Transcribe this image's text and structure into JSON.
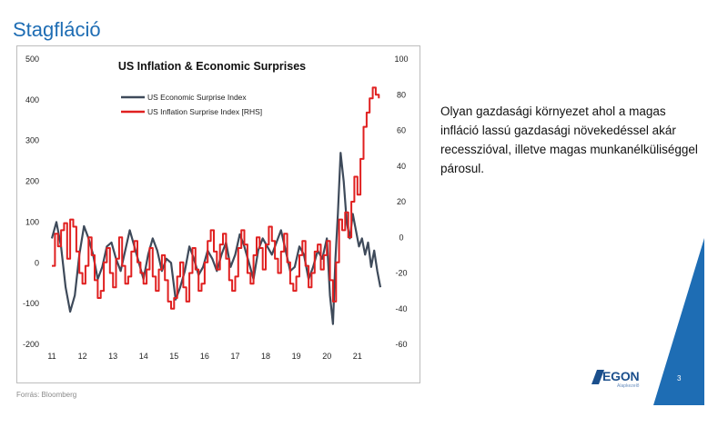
{
  "slide": {
    "title": "Stagfláció",
    "description": "Olyan gazdasági környezet ahol a magas infláció lassú gazdasági növekedéssel akár recesszióval, illetve magas munkanélküliséggel párosul.",
    "source": "Forrás: Bloomberg",
    "page_number": "3",
    "logo_text": "EGON",
    "logo_subtext": "Alapkezelő",
    "accent_color": "#1e6db4",
    "logo": {
      "icon": "egon-logo-icon"
    }
  },
  "chart_data": {
    "type": "line",
    "title": "US Inflation & Economic Surprises",
    "x_tick_labels": [
      "11",
      "12",
      "13",
      "14",
      "15",
      "16",
      "17",
      "18",
      "19",
      "20",
      "21"
    ],
    "xlim": [
      2011.0,
      2021.9
    ],
    "ylim_left": [
      -200,
      500
    ],
    "yticks_left": [
      "500",
      "400",
      "300",
      "200",
      "100",
      "0",
      "-100",
      "-200"
    ],
    "ylim_right": [
      -60,
      100
    ],
    "yticks_right": [
      "100",
      "80",
      "60",
      "40",
      "20",
      "0",
      "-20",
      "-40",
      "-60"
    ],
    "grid": false,
    "legend_position": "top-left",
    "series": [
      {
        "name": "US Economic Surprise Index",
        "axis": "left",
        "color": "#3e4a5a",
        "x": [
          2011.0,
          2011.15,
          2011.3,
          2011.45,
          2011.6,
          2011.75,
          2011.9,
          2012.05,
          2012.2,
          2012.35,
          2012.5,
          2012.65,
          2012.8,
          2012.95,
          2013.1,
          2013.25,
          2013.4,
          2013.55,
          2013.7,
          2013.85,
          2014.0,
          2014.15,
          2014.3,
          2014.45,
          2014.6,
          2014.75,
          2014.9,
          2015.05,
          2015.2,
          2015.35,
          2015.5,
          2015.65,
          2015.8,
          2015.95,
          2016.1,
          2016.25,
          2016.4,
          2016.55,
          2016.7,
          2016.85,
          2017.0,
          2017.15,
          2017.3,
          2017.45,
          2017.6,
          2017.75,
          2017.9,
          2018.05,
          2018.2,
          2018.35,
          2018.5,
          2018.65,
          2018.8,
          2018.95,
          2019.1,
          2019.25,
          2019.4,
          2019.55,
          2019.7,
          2019.85,
          2020.0,
          2020.1,
          2020.2,
          2020.28,
          2020.36,
          2020.45,
          2020.55,
          2020.65,
          2020.75,
          2020.85,
          2020.95,
          2021.05,
          2021.15,
          2021.25,
          2021.35,
          2021.45,
          2021.55,
          2021.65,
          2021.75
        ],
        "values": [
          60,
          100,
          40,
          -60,
          -120,
          -80,
          20,
          90,
          60,
          20,
          -40,
          -10,
          40,
          50,
          10,
          -20,
          30,
          80,
          40,
          0,
          -40,
          20,
          60,
          30,
          -20,
          10,
          0,
          -90,
          -60,
          -20,
          40,
          10,
          -30,
          -10,
          30,
          10,
          -20,
          20,
          50,
          -10,
          20,
          70,
          40,
          0,
          -40,
          30,
          60,
          40,
          20,
          50,
          80,
          30,
          -20,
          -10,
          40,
          20,
          -40,
          -10,
          30,
          10,
          60,
          -80,
          -150,
          10,
          120,
          270,
          200,
          100,
          60,
          120,
          80,
          40,
          60,
          20,
          50,
          -10,
          30,
          -20,
          -60
        ]
      },
      {
        "name": "US Inflation Surprise Index [RHS]",
        "axis": "right",
        "color": "#e02020",
        "step": true,
        "x": [
          2011.0,
          2011.1,
          2011.2,
          2011.3,
          2011.4,
          2011.5,
          2011.6,
          2011.7,
          2011.8,
          2011.9,
          2012.0,
          2012.1,
          2012.2,
          2012.3,
          2012.4,
          2012.5,
          2012.6,
          2012.7,
          2012.8,
          2012.9,
          2013.0,
          2013.1,
          2013.2,
          2013.3,
          2013.4,
          2013.5,
          2013.6,
          2013.7,
          2013.8,
          2013.9,
          2014.0,
          2014.1,
          2014.2,
          2014.3,
          2014.4,
          2014.5,
          2014.6,
          2014.7,
          2014.8,
          2014.9,
          2015.0,
          2015.1,
          2015.2,
          2015.3,
          2015.4,
          2015.5,
          2015.6,
          2015.7,
          2015.8,
          2015.9,
          2016.0,
          2016.1,
          2016.2,
          2016.3,
          2016.4,
          2016.5,
          2016.6,
          2016.7,
          2016.8,
          2016.9,
          2017.0,
          2017.1,
          2017.2,
          2017.3,
          2017.4,
          2017.5,
          2017.6,
          2017.7,
          2017.8,
          2017.9,
          2018.0,
          2018.1,
          2018.2,
          2018.3,
          2018.4,
          2018.5,
          2018.6,
          2018.7,
          2018.8,
          2018.9,
          2019.0,
          2019.1,
          2019.2,
          2019.3,
          2019.4,
          2019.5,
          2019.6,
          2019.7,
          2019.8,
          2019.9,
          2020.0,
          2020.1,
          2020.2,
          2020.3,
          2020.4,
          2020.5,
          2020.6,
          2020.7,
          2020.8,
          2020.9,
          2021.0,
          2021.1,
          2021.2,
          2021.3,
          2021.4,
          2021.5,
          2021.6,
          2021.7
        ],
        "values": [
          -16,
          2,
          -5,
          4,
          8,
          -12,
          10,
          6,
          -8,
          -20,
          -26,
          -16,
          0,
          -10,
          -24,
          -34,
          -30,
          -14,
          -6,
          -20,
          -28,
          -12,
          0,
          -16,
          -26,
          -22,
          -8,
          -2,
          -14,
          -20,
          -26,
          -18,
          -6,
          -22,
          -30,
          -18,
          -10,
          -24,
          -36,
          -40,
          -34,
          -22,
          -14,
          -28,
          -36,
          -20,
          -6,
          -18,
          -30,
          -26,
          -14,
          -2,
          4,
          -8,
          -18,
          -4,
          2,
          -12,
          -24,
          -30,
          -22,
          -6,
          4,
          -4,
          -20,
          -26,
          -10,
          0,
          -6,
          -18,
          -4,
          6,
          -2,
          -12,
          -20,
          -8,
          2,
          -14,
          -26,
          -30,
          -22,
          -10,
          -2,
          -16,
          -28,
          -20,
          -8,
          -4,
          -18,
          -10,
          -2,
          -24,
          -36,
          -14,
          10,
          4,
          14,
          0,
          20,
          34,
          24,
          44,
          62,
          70,
          78,
          84,
          80,
          78
        ]
      }
    ]
  }
}
